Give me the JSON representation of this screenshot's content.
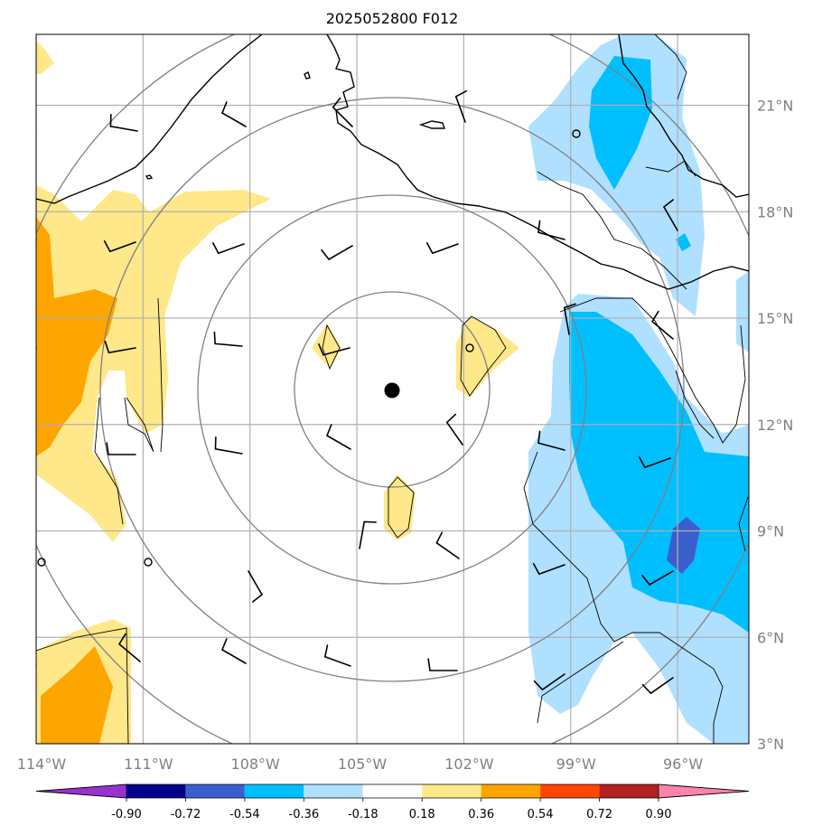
{
  "title": "2025052800 F012",
  "map": {
    "lon_range": [
      -114,
      -94
    ],
    "lat_range": [
      3,
      23
    ],
    "lat_ticks": [
      {
        "value": 21,
        "label": "21°N"
      },
      {
        "value": 18,
        "label": "18°N"
      },
      {
        "value": 15,
        "label": "15°N"
      },
      {
        "value": 12,
        "label": "12°N"
      },
      {
        "value": 9,
        "label": "9°N"
      },
      {
        "value": 6,
        "label": "6°N"
      },
      {
        "value": 3,
        "label": "3°N"
      }
    ],
    "lon_ticks": [
      {
        "value": -114,
        "label": "114°W"
      },
      {
        "value": -111,
        "label": "111°W"
      },
      {
        "value": -108,
        "label": "108°W"
      },
      {
        "value": -105,
        "label": "105°W"
      },
      {
        "value": -102,
        "label": "102°W"
      },
      {
        "value": -99,
        "label": "99°W"
      },
      {
        "value": -96,
        "label": "96°W"
      }
    ],
    "storm_center": {
      "lon": -104.2,
      "lat": 12.8
    },
    "grid_color": "#b0b0b0",
    "ring_color": "#808080"
  },
  "colorbar": {
    "levels": [
      "-0.90",
      "-0.72",
      "-0.54",
      "-0.36",
      "-0.18",
      "0.18",
      "0.36",
      "0.54",
      "0.72",
      "0.90"
    ],
    "colors": [
      "#9932CC",
      "#00008B",
      "#3A5FCD",
      "#00BFFF",
      "#B0E0FF",
      "#FFFFFF",
      "#FFE88A",
      "#FFA500",
      "#FF4500",
      "#B22222",
      "#FF82AB"
    ]
  },
  "fill_colors": {
    "light_blue": "#B0E0FF",
    "blue": "#00BFFF",
    "dark_blue": "#3A5FCD",
    "light_yellow": "#FFE88A",
    "orange": "#FFA500"
  }
}
